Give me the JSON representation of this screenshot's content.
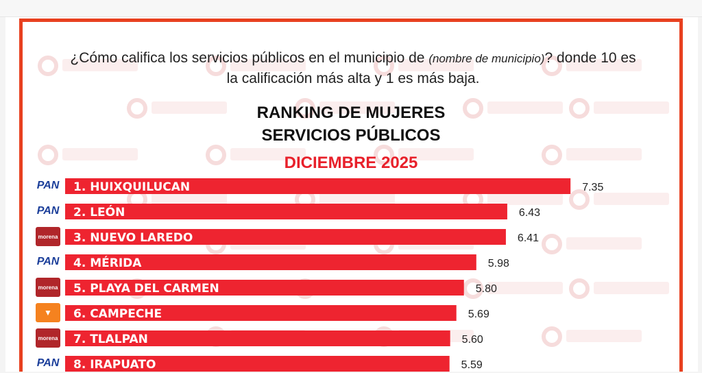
{
  "question": {
    "part1": "¿Cómo califica los servicios públicos en el municipio de ",
    "italic": "(nombre de municipio)",
    "part2": "? donde 10 es la calificación más alta y 1 es más baja."
  },
  "watermark": "RUBRUM",
  "colors": {
    "bar": "#ee2430",
    "frame": "#e8401f",
    "accent": "#e8202a"
  },
  "chart_data": {
    "type": "bar",
    "orientation": "horizontal",
    "title": "RANKING DE MUJERES SERVICIOS PÚBLICOS",
    "title_line1": "RANKING DE MUJERES",
    "title_line2": "SERVICIOS PÚBLICOS",
    "subtitle": "DICIEMBRE 2025",
    "categories": [
      "1. HUIXQUILUCAN",
      "2. LEÓN",
      "3. NUEVO LAREDO",
      "4. MÉRIDA",
      "5. PLAYA DEL CARMEN",
      "6. CAMPECHE",
      "7. TLALPAN",
      "8. IRAPUATO"
    ],
    "values": [
      7.35,
      6.43,
      6.41,
      5.98,
      5.8,
      5.69,
      5.6,
      5.59
    ],
    "value_labels": [
      "7.35",
      "6.43",
      "6.41",
      "5.98",
      "5.80",
      "5.69",
      "5.60",
      "5.59"
    ],
    "parties": [
      "PAN",
      "PAN",
      "morena",
      "PAN",
      "morena",
      "movimiento-ciudadano",
      "morena",
      "PAN"
    ],
    "party_labels": [
      "PAN",
      "PAN",
      "morena",
      "PAN",
      "morena",
      "",
      "morena",
      "PAN"
    ],
    "xlim": [
      0,
      10
    ],
    "grid": false
  }
}
